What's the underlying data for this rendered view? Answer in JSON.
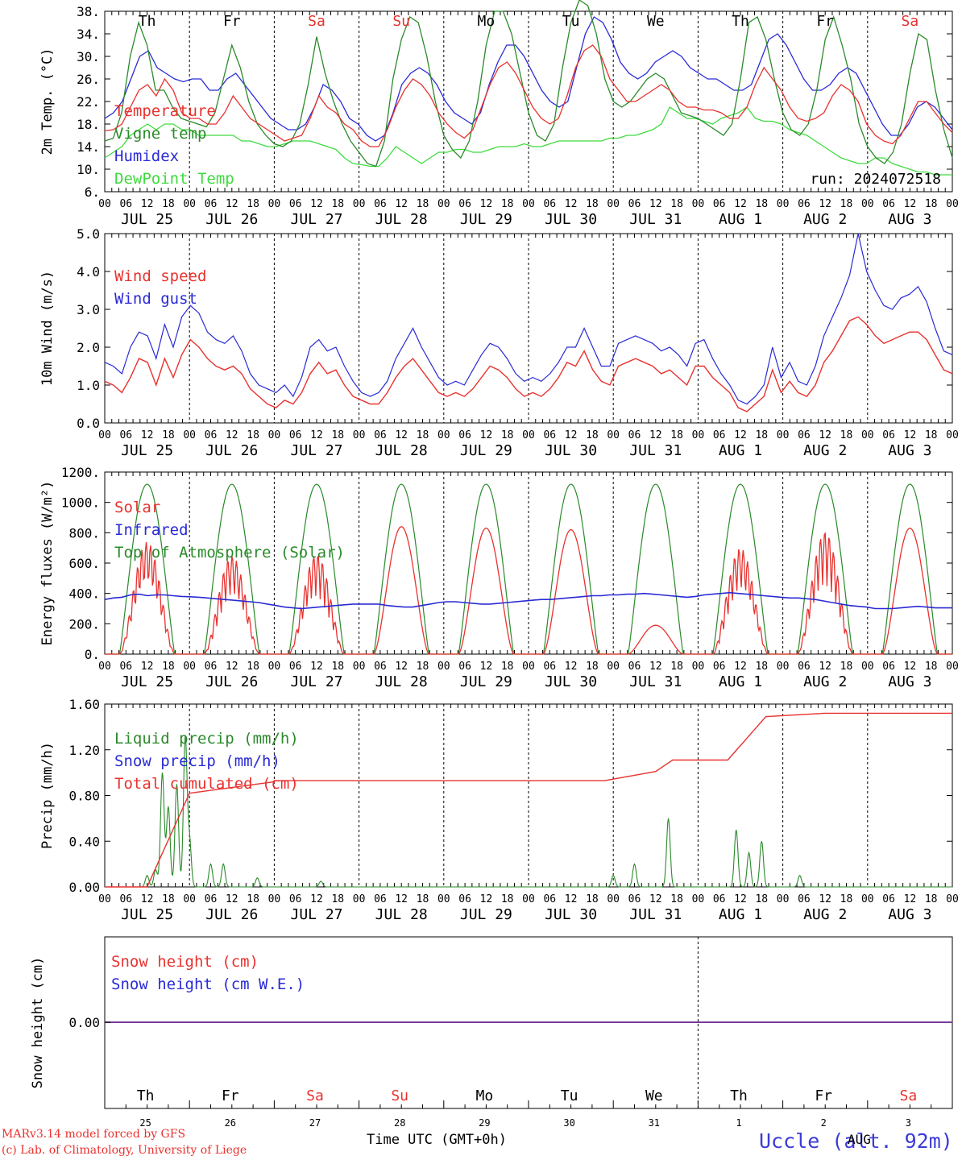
{
  "run_label": "run: 2024072518",
  "footer": {
    "model": "MARv3.14 model forced by GFS",
    "credit": "(c) Lab. of Climatology, University of Liege",
    "time_axis": "Time UTC (GMT+0h)",
    "station": "Uccle (alt. 92m)",
    "month": "AUG"
  },
  "hour_ticks": [
    "00",
    "06",
    "12",
    "18"
  ],
  "colors": {
    "red": "#e8322f",
    "green": "#2a8a2a",
    "blue": "#2a2ad6",
    "lightgreen": "#3ddc3d",
    "purple": "#7a3a9a"
  },
  "chart_data": [
    {
      "type": "line",
      "ylabel": "2m Temp. (°C)",
      "ylim": [
        6,
        38
      ],
      "yticks": [
        "6.",
        "10.",
        "14.",
        "18.",
        "22.",
        "26.",
        "30.",
        "34.",
        "38."
      ],
      "day_names": [
        "Th",
        "Fr",
        "Sa",
        "Su",
        "Mo",
        "Tu",
        "We",
        "Th",
        "Fr",
        "Sa"
      ],
      "weekend_color": [
        "black",
        "black",
        "red",
        "red",
        "black",
        "black",
        "black",
        "black",
        "black",
        "red"
      ],
      "date_labels": [
        "JUL 25",
        "JUL 26",
        "JUL 27",
        "JUL 28",
        "JUL 29",
        "JUL 30",
        "JUL 31",
        "AUG  1",
        "AUG  2",
        "AUG  3"
      ],
      "series": [
        {
          "name": "Temperature",
          "color": "red",
          "values": [
            16.8,
            17,
            18,
            21,
            24,
            25,
            23,
            26,
            24,
            20,
            19,
            19,
            18,
            18,
            20,
            23,
            21,
            19,
            18,
            17,
            16,
            15,
            15.5,
            16,
            19,
            23,
            21,
            20,
            18,
            17,
            15,
            14,
            14,
            17,
            21,
            24,
            26,
            25,
            23,
            20,
            18,
            16.5,
            15.5,
            17,
            21,
            25,
            28,
            29,
            27,
            24,
            21,
            19,
            18,
            19,
            23,
            28,
            31,
            32,
            30,
            26,
            24,
            22,
            22,
            23,
            24,
            25,
            24,
            22,
            21,
            21,
            20.5,
            20.5,
            20,
            19,
            19,
            21,
            25,
            28,
            26,
            24,
            21,
            19,
            18.5,
            19,
            20,
            23,
            25,
            24,
            22,
            18,
            16,
            15,
            14.5,
            16,
            19,
            22,
            22,
            20,
            18,
            16.5
          ]
        },
        {
          "name": "Vigne temp",
          "color": "green",
          "values": [
            15,
            15.5,
            20,
            30,
            36,
            32,
            24,
            24,
            21,
            19,
            18.5,
            18,
            17.5,
            20,
            26,
            32,
            28,
            22,
            18,
            16,
            14.5,
            14,
            15,
            18,
            25,
            33.5,
            27,
            22,
            18,
            15,
            13,
            11,
            10.5,
            15,
            26,
            33,
            37,
            36,
            30,
            22,
            16,
            13.5,
            12,
            15,
            22,
            32,
            38,
            38,
            34,
            27,
            20,
            16,
            15,
            18,
            28,
            36,
            40,
            39,
            34,
            26,
            22,
            21,
            22,
            24,
            26,
            27,
            26,
            23,
            20,
            19.5,
            19,
            18,
            17,
            16,
            18,
            26,
            36,
            37,
            33,
            26,
            20,
            17,
            16,
            18,
            24,
            33,
            37,
            32,
            26,
            18,
            14,
            12,
            11,
            13,
            18,
            27,
            34,
            33,
            24,
            17,
            12
          ]
        },
        {
          "name": "Humidex",
          "color": "blue",
          "values": [
            19,
            20,
            22,
            26,
            30,
            31,
            28,
            27,
            26,
            25.5,
            26,
            26,
            24,
            24,
            26,
            27,
            25,
            23,
            21,
            19,
            18,
            17,
            17,
            18,
            21,
            25,
            24,
            22,
            19,
            18,
            16,
            15,
            16,
            20,
            25,
            27,
            28,
            27,
            25,
            22,
            20,
            19,
            18,
            20,
            25,
            29,
            32,
            32,
            30,
            27,
            24,
            22,
            21,
            22,
            28,
            34,
            37,
            36,
            33,
            29,
            27,
            26,
            27,
            29,
            30,
            31,
            30,
            28,
            27,
            26,
            26,
            25,
            24,
            24,
            25,
            29,
            33,
            34,
            32,
            29,
            26,
            24,
            24,
            25,
            27,
            28,
            27,
            24,
            21,
            18,
            16,
            16,
            18,
            21,
            22,
            21,
            19,
            17
          ]
        },
        {
          "name": "DewPoint Temp",
          "color": "lightgreen",
          "values": [
            12,
            13,
            14,
            16,
            17,
            18,
            17,
            18,
            18,
            17,
            17,
            16,
            16,
            16,
            16,
            16,
            15,
            15,
            14.5,
            14,
            14,
            14.5,
            15,
            15,
            15,
            14.5,
            14,
            13.5,
            12,
            11,
            10.8,
            10.5,
            10.5,
            12,
            14,
            13,
            12,
            11,
            12,
            13,
            13,
            13.5,
            13.5,
            13,
            13,
            13.5,
            14,
            14,
            14,
            14.5,
            14,
            14,
            14.5,
            15,
            15,
            15,
            15,
            15,
            15,
            15.5,
            15.5,
            16,
            16,
            16.5,
            17,
            18,
            21,
            20,
            19,
            19,
            18.5,
            18,
            19,
            19.5,
            20,
            21,
            19,
            18.5,
            18.5,
            18,
            17,
            16.5,
            16,
            15,
            14,
            13,
            12,
            11.5,
            11,
            11,
            12,
            12,
            11,
            10.5,
            10,
            9.5,
            9.5,
            9,
            9,
            9
          ]
        }
      ]
    },
    {
      "type": "line",
      "ylabel": "10m Wind (m/s)",
      "ylim": [
        0,
        5
      ],
      "yticks": [
        "0.0",
        "1.0",
        "2.0",
        "3.0",
        "4.0",
        "5.0"
      ],
      "date_labels": [
        "JUL 25",
        "JUL 26",
        "JUL 27",
        "JUL 28",
        "JUL 29",
        "JUL 30",
        "JUL 31",
        "AUG  1",
        "AUG  2",
        "AUG  3"
      ],
      "series": [
        {
          "name": "Wind speed",
          "color": "red",
          "values": [
            1.1,
            1.0,
            0.8,
            1.2,
            1.7,
            1.6,
            1.0,
            1.7,
            1.2,
            1.8,
            2.2,
            2.0,
            1.7,
            1.5,
            1.4,
            1.5,
            1.3,
            0.9,
            0.7,
            0.5,
            0.4,
            0.6,
            0.5,
            0.8,
            1.3,
            1.6,
            1.3,
            1.4,
            1.0,
            0.7,
            0.6,
            0.5,
            0.5,
            0.8,
            1.2,
            1.5,
            1.7,
            1.4,
            1.1,
            0.8,
            0.7,
            0.8,
            0.7,
            0.9,
            1.2,
            1.5,
            1.4,
            1.2,
            0.9,
            0.7,
            0.8,
            0.7,
            0.9,
            1.2,
            1.6,
            1.5,
            1.9,
            1.4,
            1.1,
            1.0,
            1.5,
            1.6,
            1.7,
            1.6,
            1.5,
            1.3,
            1.4,
            1.2,
            1.0,
            1.5,
            1.5,
            1.2,
            1.0,
            0.8,
            0.4,
            0.3,
            0.5,
            0.7,
            1.4,
            0.8,
            1.1,
            0.8,
            0.7,
            1.0,
            1.6,
            1.9,
            2.3,
            2.7,
            2.8,
            2.6,
            2.3,
            2.1,
            2.2,
            2.3,
            2.4,
            2.4,
            2.2,
            1.8,
            1.4,
            1.3
          ]
        },
        {
          "name": "Wind gust",
          "color": "blue",
          "values": [
            1.6,
            1.5,
            1.3,
            2.0,
            2.4,
            2.3,
            1.7,
            2.6,
            2.0,
            2.8,
            3.1,
            2.9,
            2.4,
            2.2,
            2.1,
            2.3,
            1.9,
            1.3,
            1.0,
            0.9,
            0.8,
            1.0,
            0.7,
            1.2,
            2.0,
            2.2,
            1.9,
            2.0,
            1.5,
            1.1,
            0.8,
            0.7,
            0.8,
            1.1,
            1.7,
            2.1,
            2.5,
            2.0,
            1.6,
            1.2,
            1.0,
            1.1,
            1.0,
            1.4,
            1.8,
            2.1,
            2.0,
            1.7,
            1.3,
            1.1,
            1.2,
            1.1,
            1.3,
            1.6,
            2.0,
            2.0,
            2.5,
            2.0,
            1.5,
            1.5,
            2.1,
            2.2,
            2.3,
            2.2,
            2.1,
            1.9,
            2.0,
            1.8,
            1.5,
            2.1,
            2.2,
            1.7,
            1.3,
            1.0,
            0.6,
            0.5,
            0.7,
            1.0,
            2.0,
            1.2,
            1.6,
            1.1,
            1.0,
            1.5,
            2.3,
            2.8,
            3.3,
            3.9,
            5.0,
            4.0,
            3.5,
            3.1,
            3.0,
            3.3,
            3.4,
            3.6,
            3.2,
            2.5,
            1.9,
            1.8
          ]
        }
      ]
    },
    {
      "type": "line",
      "ylabel": "Energy fluxes (W/m²)",
      "ylim": [
        0,
        1200
      ],
      "yticks": [
        "0.",
        "200.",
        "400.",
        "600.",
        "800.",
        "1000.",
        "1200."
      ],
      "date_labels": [
        "JUL 25",
        "JUL 26",
        "JUL 27",
        "JUL 28",
        "JUL 29",
        "JUL 30",
        "JUL 31",
        "AUG  1",
        "AUG  2",
        "AUG  3"
      ],
      "series": [
        {
          "name": "Solar",
          "color": "red",
          "peaks": [
            740,
            650,
            660,
            840,
            830,
            820,
            190,
            700,
            810,
            830
          ]
        },
        {
          "name": "Infrared",
          "color": "blue",
          "values": [
            360,
            370,
            375,
            390,
            395,
            385,
            390,
            390,
            385,
            380,
            378,
            375,
            370,
            365,
            360,
            355,
            350,
            345,
            340,
            330,
            320,
            310,
            305,
            300,
            305,
            310,
            315,
            320,
            325,
            330,
            330,
            330,
            330,
            320,
            315,
            310,
            310,
            320,
            330,
            340,
            345,
            345,
            340,
            335,
            330,
            330,
            335,
            340,
            345,
            350,
            355,
            360,
            360,
            365,
            370,
            375,
            380,
            385,
            385,
            390,
            390,
            395,
            395,
            400,
            395,
            390,
            385,
            380,
            375,
            380,
            390,
            395,
            400,
            405,
            400,
            395,
            390,
            385,
            380,
            375,
            370,
            370,
            365,
            360,
            350,
            340,
            330,
            320,
            315,
            310,
            300,
            300,
            300,
            305,
            310,
            315,
            310,
            305,
            305,
            305
          ]
        },
        {
          "name": "Top of Atmosphere (Solar)",
          "color": "green",
          "peak": 1120
        }
      ]
    },
    {
      "type": "line",
      "ylabel": "Precip (mm/h)",
      "ylim": [
        0,
        1.6
      ],
      "yticks": [
        "0.00",
        "0.40",
        "0.80",
        "1.20",
        "1.60"
      ],
      "date_labels": [
        "JUL 25",
        "JUL 26",
        "JUL 27",
        "JUL 28",
        "JUL 29",
        "JUL 30",
        "JUL 31",
        "AUG  1",
        "AUG  2",
        "AUG  3"
      ],
      "series": [
        {
          "name": "Liquid precip (mm/h)",
          "color": "green"
        },
        {
          "name": "Snow precip (mm/h)",
          "color": "blue"
        },
        {
          "name": "Total cumulated (cm)",
          "color": "red"
        }
      ]
    },
    {
      "type": "line",
      "ylabel": "Snow height (cm)",
      "ytick": "0.00",
      "day_names": [
        "Th",
        "Fr",
        "Sa",
        "Su",
        "Mo",
        "Tu",
        "We",
        "Th",
        "Fr",
        "Sa"
      ],
      "weekend_color": [
        "black",
        "black",
        "red",
        "red",
        "black",
        "black",
        "black",
        "black",
        "black",
        "red"
      ],
      "day_numbers": [
        "25",
        "26",
        "27",
        "28",
        "29",
        "30",
        "31",
        "1",
        "2",
        "3"
      ],
      "series": [
        {
          "name": "Snow height (cm)",
          "color": "red"
        },
        {
          "name": "Snow height (cm W.E.)",
          "color": "blue"
        }
      ]
    }
  ]
}
